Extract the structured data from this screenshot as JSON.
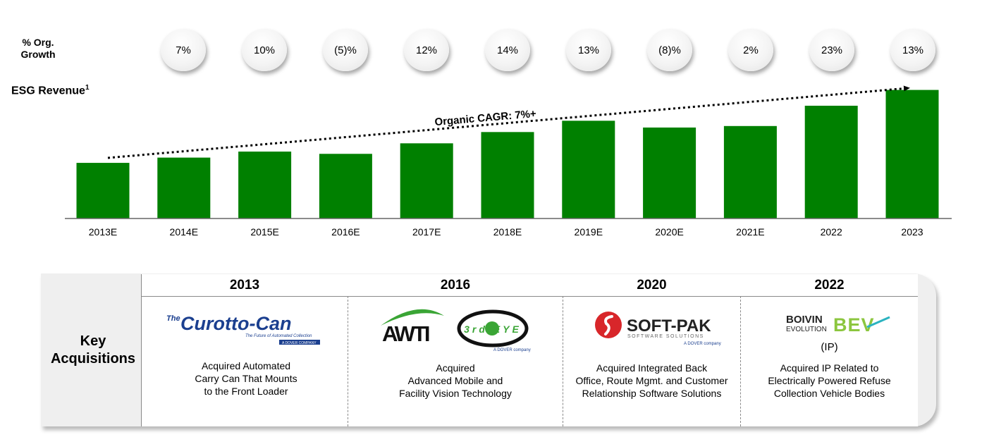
{
  "growth_label_line1": "% Org.",
  "growth_label_line2": "Growth",
  "revenue_label": "ESG Revenue",
  "revenue_footnote": "1",
  "cagr_label": "Organic CAGR: 7%+",
  "colors": {
    "bar": "#008000",
    "bubble": "#f0f0f0",
    "panel": "#efefef"
  },
  "chart_data": {
    "type": "bar",
    "categories": [
      "2013E",
      "2014E",
      "2015E",
      "2016E",
      "2017E",
      "2018E",
      "2019E",
      "2020E",
      "2021E",
      "2022",
      "2023"
    ],
    "values": [
      74,
      81,
      89,
      86,
      100,
      115,
      130,
      121,
      123,
      150,
      171
    ],
    "growth_labels": [
      "7%",
      "10%",
      "(5)%",
      "12%",
      "14%",
      "13%",
      "(8)%",
      "2%",
      "23%",
      "13%"
    ],
    "title": "",
    "xlabel": "",
    "ylabel": "ESG Revenue",
    "ylim": [
      0,
      180
    ],
    "grid": false,
    "trend_annotation": "Organic CAGR: 7%+"
  },
  "acquisitions": {
    "title_line1": "Key",
    "title_line2": "Acquisitions",
    "items": [
      {
        "year": "2013",
        "logo_the": "The",
        "logo_main": "Curotto-Can",
        "logo_tag": "The Future of Automated Collection",
        "logo_sub": "A DOVER COMPANY",
        "desc_lines": [
          "Acquired Automated",
          "Carry Can That Mounts",
          "to the Front Loader"
        ]
      },
      {
        "year": "2016",
        "logo_main": "AWTI",
        "logo_second": "3rd EYE",
        "logo_sub": "A DOVER company",
        "desc_lines": [
          "Acquired",
          "Advanced Mobile and",
          "Facility Vision Technology"
        ]
      },
      {
        "year": "2020",
        "logo_main": "SOFT-PAK",
        "logo_tag": "SOFTWARE SOLUTIONS",
        "logo_sub": "A DOVER company",
        "desc_lines": [
          "Acquired Integrated Back",
          "Office, Route Mgmt. and Customer",
          "Relationship Software Solutions"
        ]
      },
      {
        "year": "2022",
        "logo_main": "BOIVIN",
        "logo_second": "EVOLUTION",
        "logo_third": "BEV",
        "note": "(IP)",
        "desc_lines": [
          "Acquired IP Related to",
          "Electrically Powered Refuse",
          "Collection Vehicle Bodies"
        ]
      }
    ]
  }
}
